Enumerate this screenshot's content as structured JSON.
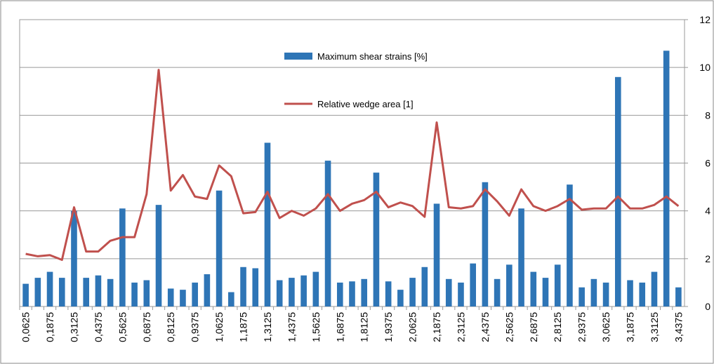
{
  "chart_data": {
    "type": "bar-line",
    "categories": [
      "0,0625",
      null,
      "0,1875",
      null,
      "0,3125",
      null,
      "0,4375",
      null,
      "0,5625",
      null,
      "0,6875",
      null,
      "0,8125",
      null,
      "0,9375",
      null,
      "1,0625",
      null,
      "1,1875",
      null,
      "1,3125",
      null,
      "1,4375",
      null,
      "1,5625",
      null,
      "1,6875",
      null,
      "1,8125",
      null,
      "1,9375",
      null,
      "2,0625",
      null,
      "2,1875",
      null,
      "2,3125",
      null,
      "2,4375",
      null,
      "2,5625",
      null,
      "2,6875",
      null,
      "2,8125",
      null,
      "2,9375",
      null,
      "3,0625",
      null,
      "3,1875",
      null,
      "3,3125",
      null,
      "3,4375"
    ],
    "series": [
      {
        "name": "Maximum shear strains [%]",
        "type": "bar",
        "color": "#2e75b6",
        "axis": "y2",
        "values": [
          0.95,
          1.2,
          1.45,
          1.2,
          4.0,
          1.2,
          1.3,
          1.15,
          4.1,
          1.0,
          1.1,
          4.25,
          0.75,
          0.7,
          1.0,
          1.35,
          4.85,
          0.6,
          1.65,
          1.6,
          6.85,
          1.1,
          1.2,
          1.3,
          1.45,
          6.1,
          1.0,
          1.05,
          1.15,
          5.6,
          1.05,
          0.7,
          1.2,
          1.65,
          4.3,
          1.15,
          1.0,
          1.8,
          5.2,
          1.15,
          1.75,
          4.1,
          1.45,
          1.2,
          1.75,
          5.1,
          0.8,
          1.15,
          1.0,
          9.6,
          1.1,
          1.0,
          1.45,
          10.7,
          0.8
        ]
      },
      {
        "name": "Relative wedge area [1]",
        "type": "line",
        "color": "#c0504d",
        "axis": "y2",
        "values": [
          2.2,
          2.1,
          2.15,
          1.95,
          4.15,
          2.3,
          2.3,
          2.75,
          2.9,
          2.9,
          4.7,
          9.9,
          4.85,
          5.5,
          4.6,
          4.5,
          5.9,
          5.45,
          3.9,
          3.95,
          4.8,
          3.7,
          4.0,
          3.8,
          4.1,
          4.7,
          4.0,
          4.3,
          4.45,
          4.8,
          4.15,
          4.35,
          4.2,
          3.75,
          7.7,
          4.15,
          4.1,
          4.2,
          4.9,
          4.4,
          3.8,
          4.9,
          4.2,
          4.0,
          4.2,
          4.5,
          4.05,
          4.1,
          4.1,
          4.6,
          4.1,
          4.1,
          4.25,
          4.6,
          4.2
        ]
      }
    ],
    "y2lim": [
      0,
      12
    ],
    "y2ticks": [
      0,
      2,
      4,
      6,
      8,
      10,
      12
    ],
    "grid": true
  }
}
